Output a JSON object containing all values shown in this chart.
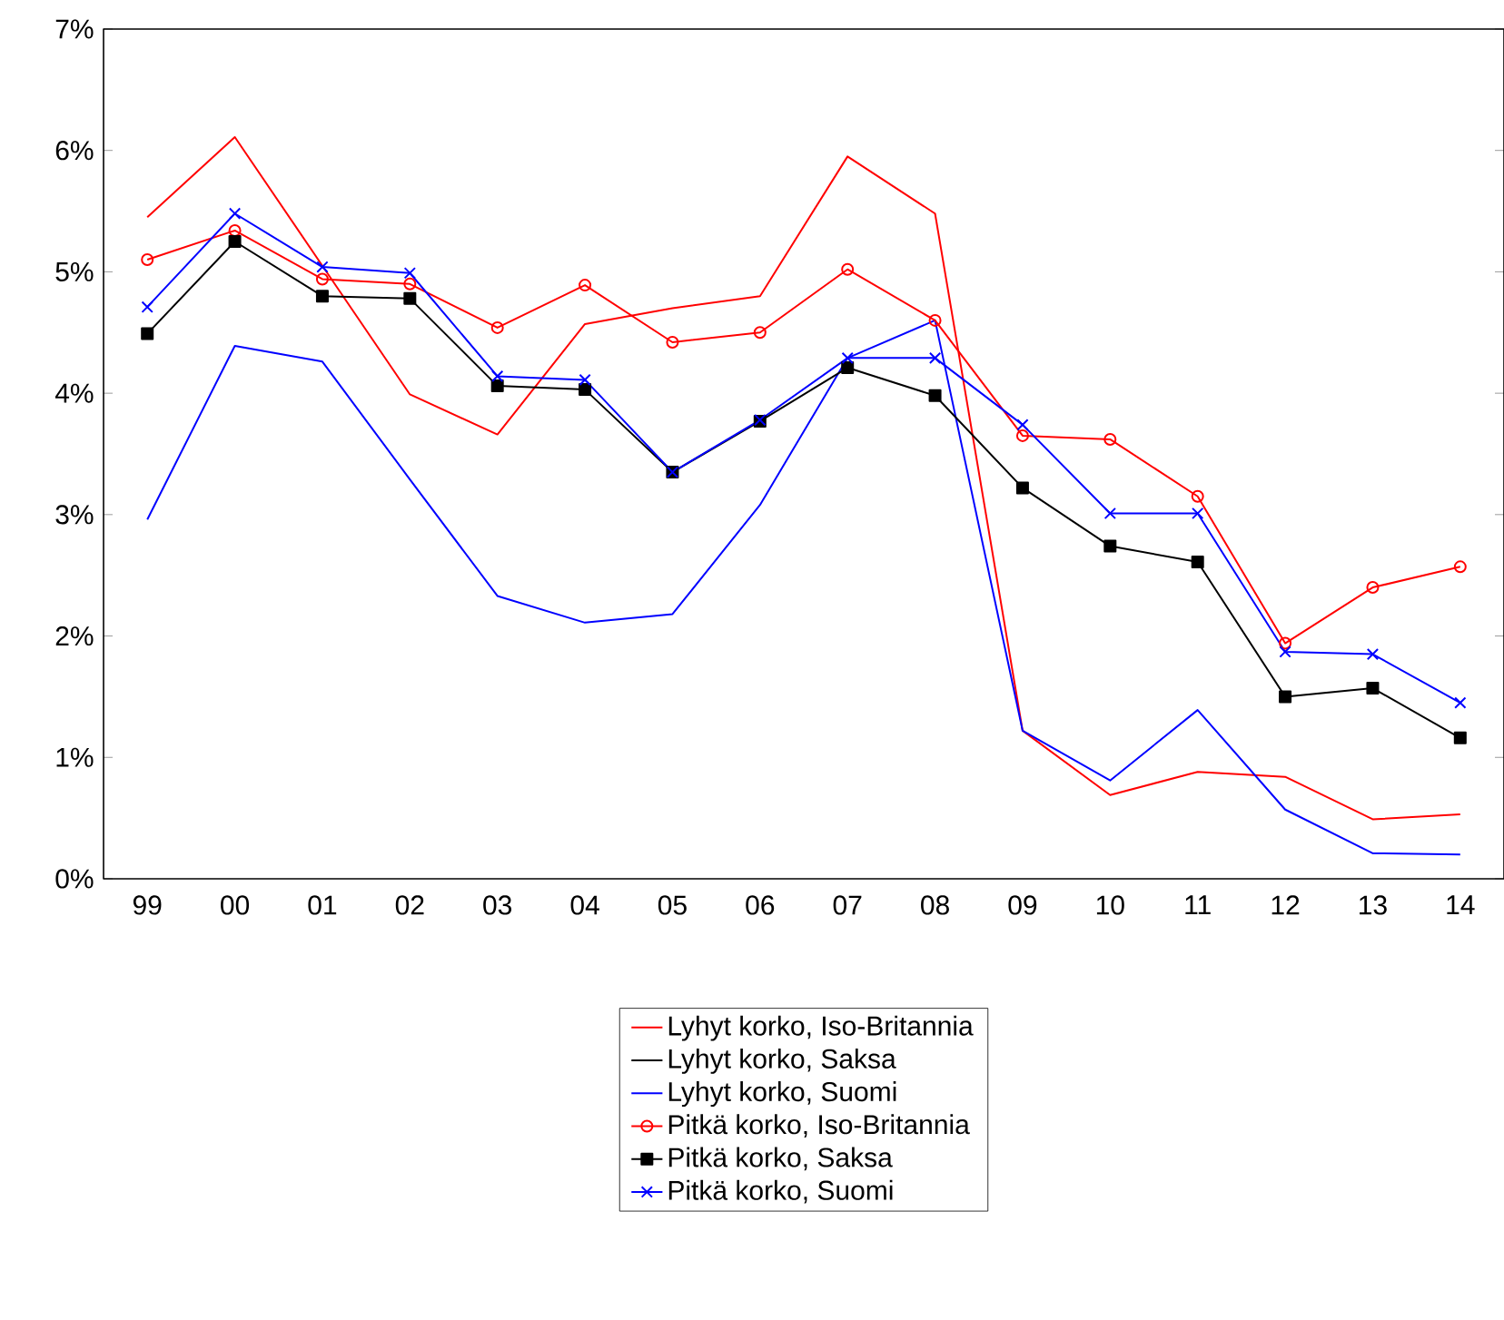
{
  "chart_data": {
    "type": "line",
    "categories": [
      "99",
      "00",
      "01",
      "02",
      "03",
      "04",
      "05",
      "06",
      "07",
      "08",
      "09",
      "10",
      "11",
      "12",
      "13",
      "14"
    ],
    "ylim": [
      0,
      7
    ],
    "yticks": [
      {
        "value": 0,
        "label": "0%"
      },
      {
        "value": 1,
        "label": "1%"
      },
      {
        "value": 2,
        "label": "2%"
      },
      {
        "value": 3,
        "label": "3%"
      },
      {
        "value": 4,
        "label": "4%"
      },
      {
        "value": 5,
        "label": "5%"
      },
      {
        "value": 6,
        "label": "6%"
      },
      {
        "value": 7,
        "label": "7%"
      }
    ],
    "legend": "bottom",
    "grid": false,
    "series": [
      {
        "name": "Lyhyt korko, Iso-Britannia",
        "color": "#ff0000",
        "marker": "none",
        "values": [
          5.45,
          6.11,
          5.05,
          3.99,
          3.66,
          4.57,
          4.7,
          4.8,
          5.95,
          5.48,
          1.22,
          0.69,
          0.88,
          0.84,
          0.49,
          0.53
        ]
      },
      {
        "name": "Lyhyt korko, Saksa",
        "color": "#000000",
        "marker": "none",
        "values": [
          null,
          null,
          null,
          null,
          null,
          null,
          null,
          null,
          null,
          null,
          null,
          null,
          null,
          null,
          null,
          null
        ]
      },
      {
        "name": "Lyhyt korko, Suomi",
        "color": "#0000ff",
        "marker": "none",
        "values": [
          2.96,
          4.39,
          4.26,
          3.29,
          2.33,
          2.11,
          2.18,
          3.08,
          4.29,
          4.6,
          1.22,
          0.81,
          1.39,
          0.57,
          0.21,
          0.2
        ]
      },
      {
        "name": "Pitkä korko, Iso-Britannia",
        "color": "#ff0000",
        "marker": "circle",
        "values": [
          5.1,
          5.34,
          4.94,
          4.9,
          4.54,
          4.89,
          4.42,
          4.5,
          5.02,
          4.6,
          3.65,
          3.62,
          3.15,
          1.94,
          2.4,
          2.57
        ]
      },
      {
        "name": "Pitkä korko, Saksa",
        "color": "#000000",
        "marker": "square",
        "values": [
          4.49,
          5.25,
          4.8,
          4.78,
          4.06,
          4.03,
          3.35,
          3.77,
          4.21,
          3.98,
          3.22,
          2.74,
          2.61,
          1.5,
          1.57,
          1.16
        ]
      },
      {
        "name": "Pitkä korko, Suomi",
        "color": "#0000ff",
        "marker": "cross",
        "values": [
          4.71,
          5.48,
          5.04,
          4.99,
          4.14,
          4.11,
          3.35,
          3.78,
          4.29,
          4.29,
          3.74,
          3.01,
          3.01,
          1.87,
          1.85,
          1.45
        ]
      }
    ]
  }
}
